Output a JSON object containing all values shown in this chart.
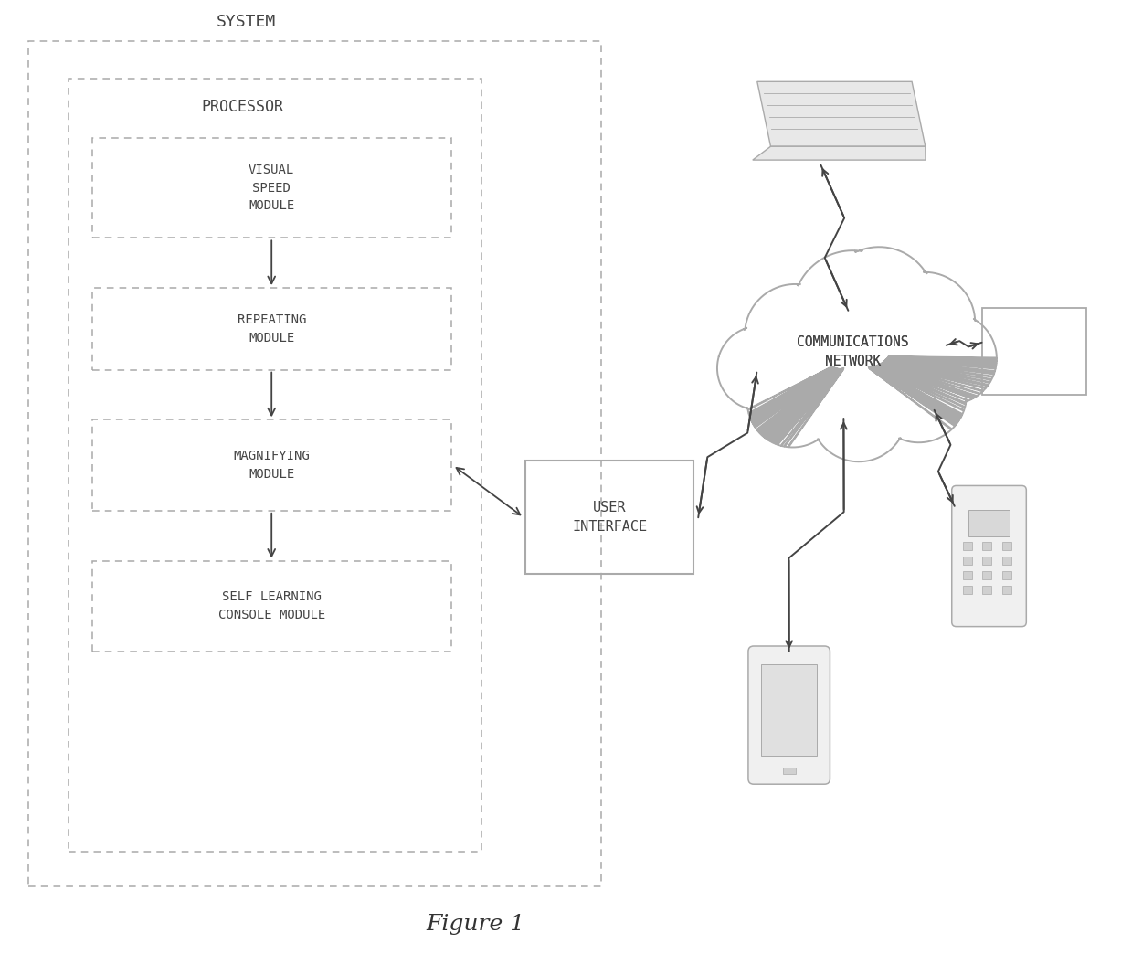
{
  "title": "Figure 1",
  "system_label": "SYSTEM",
  "processor_label": "PROCESSOR",
  "modules": [
    "VISUAL\nSPEED\nMODULE",
    "REPEATING\nMODULE",
    "MAGNIFYING\nMODULE",
    "SELF LEARNING\nCONSOLE MODULE"
  ],
  "user_interface_label": "USER\nINTERFACE",
  "network_label": "COMMUNICATIONS\nNETWORK",
  "bg_color": "#ffffff",
  "box_edge_color": "#bbbbbb",
  "dashed_color": "#aaaaaa",
  "text_color": "#444444",
  "arrow_color": "#444444"
}
